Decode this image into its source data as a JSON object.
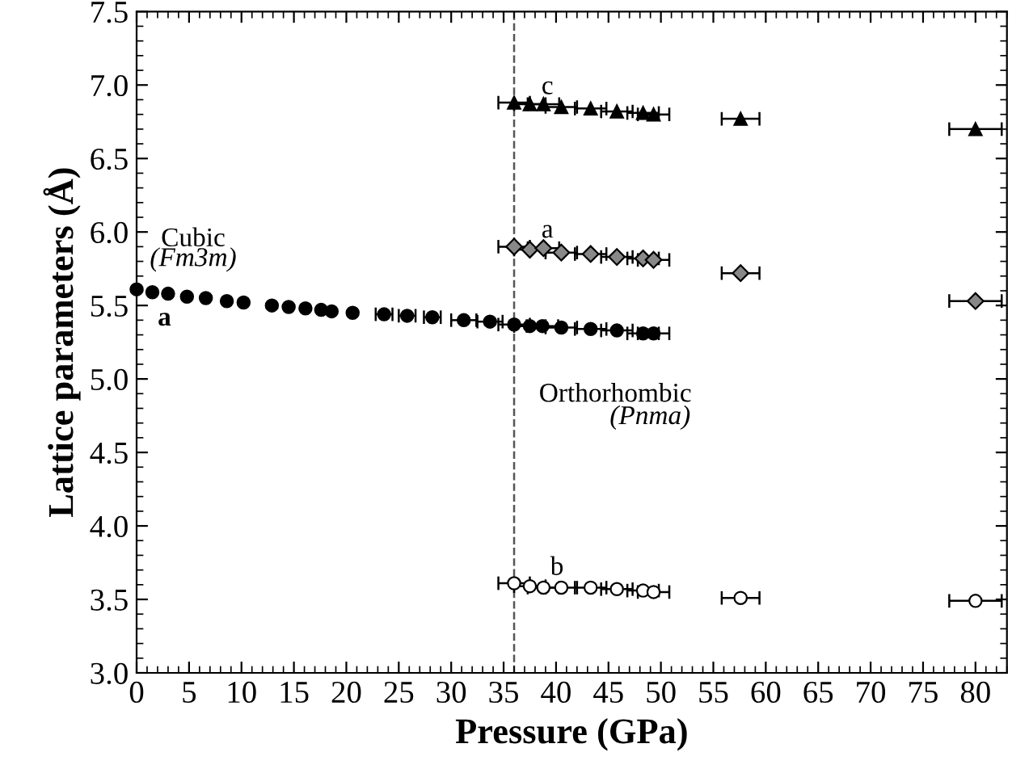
{
  "chart_data": {
    "type": "scatter",
    "xlabel": "Pressure (GPa)",
    "ylabel": "Lattice parameters (Å)",
    "xlim": [
      0,
      83
    ],
    "ylim": [
      3.0,
      7.5
    ],
    "xticks": [
      0,
      5,
      10,
      15,
      20,
      25,
      30,
      35,
      40,
      45,
      50,
      55,
      60,
      65,
      70,
      75,
      80
    ],
    "yticks": [
      {
        "value": 3.0,
        "label": "3.0"
      },
      3.5,
      {
        "value": 4.0,
        "label": "4.0"
      },
      4.5,
      {
        "value": 5.0,
        "label": "5.0"
      },
      5.5,
      {
        "value": 6.0,
        "label": "6.0"
      },
      6.5,
      {
        "value": 7.0,
        "label": "7.0"
      },
      7.5
    ],
    "grid": false,
    "legend": false,
    "series": [
      {
        "color": "#000000",
        "marker": "circle",
        "x": [
          0,
          1.5,
          3,
          4.8,
          6.6,
          8.6,
          10.2,
          12.9,
          14.5,
          16.1,
          17.6,
          18.6,
          20.6,
          23.6,
          25.8,
          28.2,
          31.2,
          33.7,
          36,
          37.5,
          38.7,
          40.5,
          43.3,
          45.8,
          48.3,
          49.3
        ],
        "values": [
          5.61,
          5.59,
          5.58,
          5.56,
          5.55,
          5.53,
          5.52,
          5.5,
          5.49,
          5.48,
          5.47,
          5.46,
          5.45,
          5.44,
          5.43,
          5.42,
          5.4,
          5.39,
          5.37,
          5.36,
          5.36,
          5.35,
          5.34,
          5.33,
          5.31,
          5.31
        ],
        "xerrors": [
          null,
          null,
          null,
          null,
          null,
          null,
          null,
          null,
          null,
          null,
          null,
          null,
          null,
          0.8,
          0.8,
          0.8,
          1.2,
          1.2,
          1.5,
          1.5,
          1.5,
          1.5,
          1.5,
          1.5,
          1.5,
          1.5
        ]
      },
      {
        "color": "#000000",
        "marker": "triangle",
        "x": [
          36,
          37.5,
          38.8,
          40.5,
          43.3,
          45.8,
          48.3,
          49.3,
          57.6,
          80
        ],
        "values": [
          6.88,
          6.87,
          6.87,
          6.85,
          6.84,
          6.82,
          6.81,
          6.8,
          6.77,
          6.7
        ],
        "xerrors": [
          1.5,
          1.5,
          1.5,
          1.5,
          1.5,
          1.5,
          1.5,
          1.5,
          1.8,
          2.5
        ]
      },
      {
        "color": "#888888",
        "marker": "diamond",
        "x": [
          36,
          37.5,
          38.8,
          40.5,
          43.3,
          45.8,
          48.3,
          49.3,
          57.6,
          80
        ],
        "values": [
          5.9,
          5.88,
          5.89,
          5.86,
          5.85,
          5.83,
          5.82,
          5.81,
          5.72,
          5.53
        ],
        "xerrors": [
          1.5,
          1.5,
          1.5,
          1.5,
          1.5,
          1.5,
          1.5,
          1.5,
          1.8,
          2.5
        ]
      },
      {
        "color": "#ffffff",
        "marker": "circle",
        "x": [
          36,
          37.5,
          38.8,
          40.5,
          43.3,
          45.8,
          48.3,
          49.3,
          57.6,
          80
        ],
        "values": [
          3.61,
          3.59,
          3.58,
          3.58,
          3.58,
          3.57,
          3.56,
          3.55,
          3.51,
          3.49
        ],
        "xerrors": [
          1.5,
          1.5,
          1.5,
          1.5,
          1.5,
          1.5,
          1.5,
          1.5,
          1.8,
          2.5
        ]
      }
    ],
    "ref_lines": [
      {
        "axis": "x",
        "value": 36,
        "line_style": "dashed",
        "color": "#555555"
      }
    ],
    "annotations": [
      "Cubic",
      "(Fm3m)",
      "a",
      "c",
      "a",
      "b",
      "Orthorhombic",
      "(Pnma)"
    ]
  }
}
